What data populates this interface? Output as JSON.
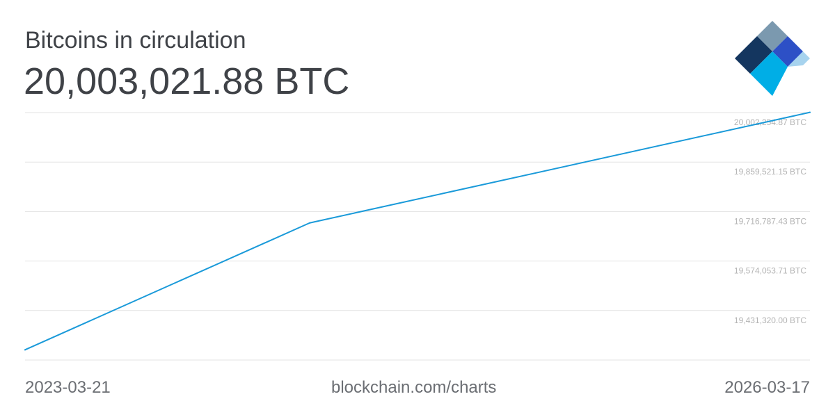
{
  "header": {
    "title": "Bitcoins in circulation",
    "value": "20,003,021.88 BTC"
  },
  "footer": {
    "start_date": "2023-03-21",
    "source": "blockchain.com/charts",
    "end_date": "2026-03-17"
  },
  "logo": {
    "icon": "blockchain-diamond-logo",
    "colors": [
      "#7b99af",
      "#14365f",
      "#2d50c6",
      "#00aee6",
      "#a7d3ee"
    ]
  },
  "colors": {
    "line": "#1a9ad9",
    "grid": "#e3e3e3",
    "text": "#3f4247",
    "muted": "#b4b4b4"
  },
  "chart_data": {
    "type": "line",
    "title": "Bitcoins in circulation",
    "xlabel": "",
    "ylabel": "",
    "x": [
      "2023-03-21",
      "2024-04-20",
      "2026-03-17"
    ],
    "series": [
      {
        "values": [
          19318000,
          19684000,
          20003021.88
        ]
      }
    ],
    "xlim": [
      "2023-03-21",
      "2026-03-17"
    ],
    "ylim": [
      19288586.29,
      20002254.87
    ],
    "yticks": [
      19431320.0,
      19574053.71,
      19716787.43,
      19859521.15,
      20002254.87
    ],
    "ytick_labels": [
      "19,431,320.00 BTC",
      "19,574,053.71 BTC",
      "19,716,787.43 BTC",
      "19,859,521.15 BTC",
      "20,002,254.87 BTC"
    ],
    "grid": true,
    "legend": "none"
  }
}
